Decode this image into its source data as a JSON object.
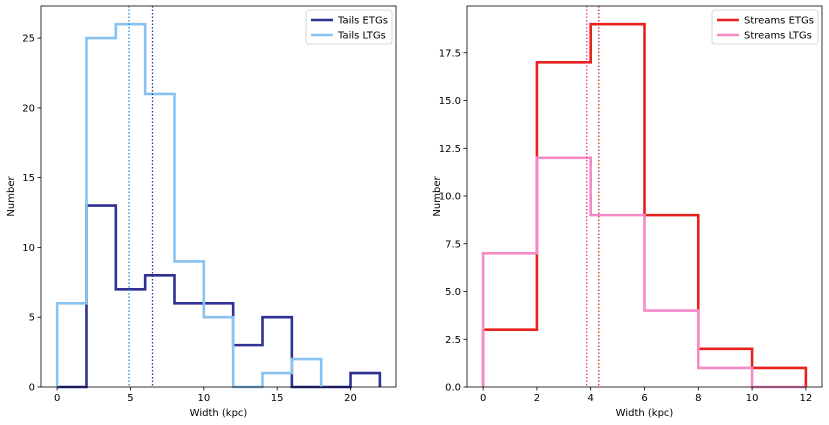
{
  "chart_data": [
    {
      "type": "histogram",
      "xlabel": "Width (kpc)",
      "ylabel": "Number",
      "xlim": [
        -1.1,
        23.1
      ],
      "ylim": [
        0,
        27.3
      ],
      "xticks": [
        0,
        5,
        10,
        15,
        20
      ],
      "yticks": [
        0,
        5,
        10,
        15,
        20,
        25
      ],
      "grid": false,
      "legend_position": "top-right",
      "series": [
        {
          "name": "Tails ETGs",
          "color": "#2e3192",
          "bin_edges": [
            0,
            2,
            4,
            6,
            8,
            10,
            12,
            14,
            16,
            18,
            20,
            22
          ],
          "counts": [
            0,
            13,
            7,
            8,
            6,
            6,
            3,
            5,
            0,
            0,
            1
          ]
        },
        {
          "name": "Tails LTGs",
          "color": "#87c2f0",
          "bin_edges": [
            0,
            2,
            4,
            6,
            8,
            10,
            12,
            14,
            16,
            18
          ],
          "counts": [
            6,
            25,
            26,
            21,
            9,
            5,
            0,
            1,
            2
          ]
        }
      ],
      "vlines": [
        {
          "x": 4.9,
          "color": "#2a8bd6"
        },
        {
          "x": 6.5,
          "color": "#2e3192"
        }
      ]
    },
    {
      "type": "histogram",
      "xlabel": "Width (kpc)",
      "ylabel": "Number",
      "xlim": [
        -0.6,
        12.6
      ],
      "ylim": [
        0,
        19.95
      ],
      "xticks": [
        0,
        2,
        4,
        6,
        8,
        10,
        12
      ],
      "yticks": [
        0.0,
        2.5,
        5.0,
        7.5,
        10.0,
        12.5,
        15.0,
        17.5
      ],
      "ytick_labels": [
        "0.0",
        "2.5",
        "5.0",
        "7.5",
        "10.0",
        "12.5",
        "15.0",
        "17.5"
      ],
      "grid": false,
      "legend_position": "top-right",
      "series": [
        {
          "name": "Streams ETGs",
          "color": "#e8201e",
          "bin_edges": [
            0,
            2,
            4,
            6,
            8,
            10,
            12
          ],
          "counts": [
            3,
            17,
            19,
            9,
            2,
            1
          ]
        },
        {
          "name": "Streams LTGs",
          "color": "#f48ac6",
          "bin_edges": [
            0,
            2,
            4,
            6,
            8,
            10,
            12
          ],
          "counts": [
            7,
            12,
            9,
            4,
            1,
            0
          ]
        }
      ],
      "vlines": [
        {
          "x": 3.85,
          "color": "#f03a8a"
        },
        {
          "x": 4.3,
          "color": "#e8201e"
        }
      ]
    }
  ]
}
